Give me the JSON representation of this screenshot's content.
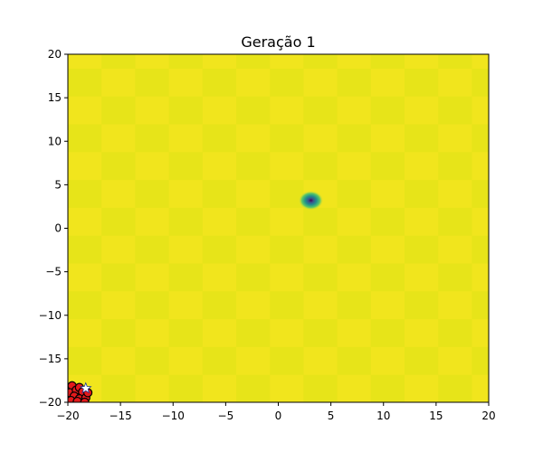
{
  "chart_data": {
    "type": "heatmap",
    "title": "Geração 1",
    "xlim": [
      -20,
      20
    ],
    "ylim": [
      -20,
      20
    ],
    "x_ticks": [
      -20,
      -15,
      -10,
      -5,
      0,
      5,
      10,
      15,
      20
    ],
    "y_ticks": [
      -20,
      -15,
      -10,
      -5,
      0,
      5,
      10,
      15,
      20
    ],
    "x_tick_labels": [
      "−20",
      "−15",
      "−10",
      "−5",
      "0",
      "5",
      "10",
      "15",
      "20"
    ],
    "y_tick_labels": [
      "−20",
      "−15",
      "−10",
      "−5",
      "0",
      "5",
      "10",
      "15",
      "20"
    ],
    "grid": false,
    "background": {
      "description_kind": "checkerboard",
      "colors": [
        "#f1e51d",
        "#e7e419"
      ],
      "cell_size": 3.2
    },
    "minimum": {
      "x": 3.1,
      "y": 3.2,
      "colors": [
        "#fde725",
        "#5ec962",
        "#21918c",
        "#3b528b",
        "#440154"
      ]
    },
    "population": {
      "marker": "circle",
      "face_color": "#e31a1c",
      "edge_color": "#000000",
      "points": [
        {
          "x": -19.6,
          "y": -18.1
        },
        {
          "x": -19.8,
          "y": -18.9
        },
        {
          "x": -19.2,
          "y": -18.6
        },
        {
          "x": -18.9,
          "y": -18.3
        },
        {
          "x": -18.6,
          "y": -18.8
        },
        {
          "x": -19.4,
          "y": -19.3
        },
        {
          "x": -18.9,
          "y": -19.6
        },
        {
          "x": -18.3,
          "y": -19.5
        },
        {
          "x": -19.7,
          "y": -19.8
        },
        {
          "x": -18.1,
          "y": -18.9
        },
        {
          "x": -19.1,
          "y": -19.9
        },
        {
          "x": -18.4,
          "y": -20.0
        }
      ]
    },
    "best": {
      "x": -18.3,
      "y": -18.4,
      "marker": "star",
      "color": "#ffffff"
    }
  }
}
